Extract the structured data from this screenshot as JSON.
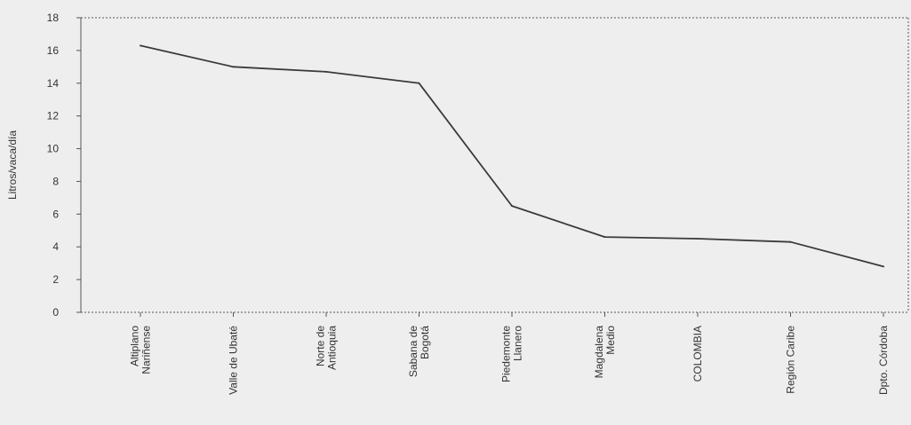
{
  "chart_data": {
    "type": "line",
    "title": "",
    "xlabel": "",
    "ylabel": "Litros/vaca/día",
    "categories": [
      [
        "Altiplano",
        "Nariñense"
      ],
      [
        "Valle de Ubaté"
      ],
      [
        "Norte de",
        "Antioquia"
      ],
      [
        "Sabana de",
        "Bogotá"
      ],
      [
        "Piedemonte",
        "Llanero"
      ],
      [
        "Magdalena",
        "Medio"
      ],
      [
        "COLOMBIA"
      ],
      [
        "Región Caribe"
      ],
      [
        "Dpto. Córdoba"
      ]
    ],
    "values": [
      16.3,
      15.0,
      14.7,
      14.0,
      6.5,
      4.6,
      4.5,
      4.3,
      2.8
    ],
    "ylim": [
      0,
      18
    ],
    "yticks": [
      0,
      2,
      4,
      6,
      8,
      10,
      12,
      14,
      16,
      18
    ],
    "grid": false,
    "line_color": "#3a3a3a",
    "axis_color": "#555555"
  }
}
